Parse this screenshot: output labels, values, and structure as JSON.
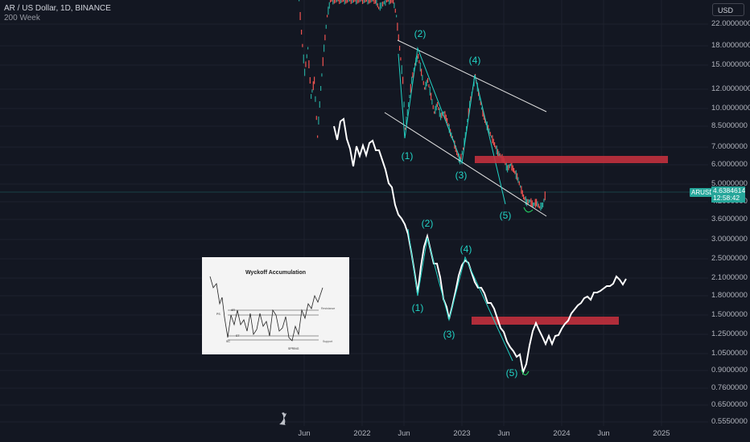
{
  "header": {
    "symbol_line": "AR / US Dollar, 1D, BINANCE",
    "indicator": "200 Week"
  },
  "currency_button": "USD",
  "price_label": {
    "symbol": "ARUSD",
    "price": "4.6384614",
    "countdown": "12:58:42"
  },
  "colors": {
    "background": "#131722",
    "wave": "#22d3c5",
    "zone": "#c2303d",
    "up": "#26a69a",
    "down": "#ef5350"
  },
  "chart_data": {
    "type": "line",
    "y_scale": "log",
    "y_ticks": [
      "22.0000000",
      "18.0000000",
      "15.0000000",
      "12.0000000",
      "10.0000000",
      "8.5000000",
      "7.0000000",
      "6.0000000",
      "5.0000000",
      "4.2000000",
      "3.6000000",
      "3.0000000",
      "2.5000000",
      "2.1000000",
      "1.8000000",
      "1.5000000",
      "1.2500000",
      "1.0500000",
      "0.9000000",
      "0.7600000",
      "0.6500000",
      "0.5550000"
    ],
    "x_ticks": [
      "Jun",
      "2022",
      "Jun",
      "2023",
      "Jun",
      "2024",
      "Jun",
      "2025"
    ],
    "wave_labels_upper": [
      "(1)",
      "(2)",
      "(3)",
      "(4)",
      "(5)"
    ],
    "wave_labels_lower": [
      "(1)",
      "(2)",
      "(3)",
      "(4)",
      "(5)"
    ],
    "resistance_zone_upper": 6.0,
    "resistance_zone_lower": 1.35
  },
  "inset": {
    "title": "Wyckoff Accumulation",
    "labels": {
      "ps": "PS",
      "ar": "AR",
      "sc": "SC",
      "st": "ST",
      "spring": "SPRING",
      "resistance": "Resistance",
      "support": "Support"
    }
  }
}
